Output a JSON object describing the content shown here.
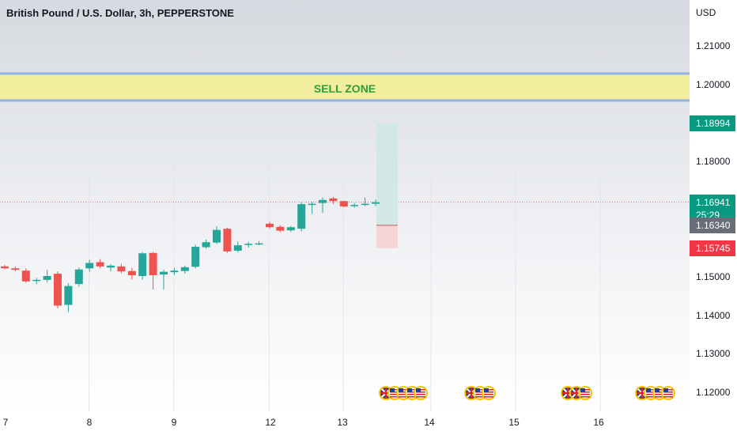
{
  "header": {
    "title": "British Pound / U.S. Dollar, 3h, PEPPERSTONE",
    "currency": "USD"
  },
  "zone": {
    "label": "SELL ZONE",
    "from": 1.1959,
    "to": 1.2029
  },
  "price_tags": [
    {
      "name": "target-price",
      "value": "1.18994",
      "color": "#089981",
      "y": 1.18994
    },
    {
      "name": "current-price",
      "value": "1.16941",
      "sub": "25:29",
      "color": "#089981",
      "y": 1.16941
    },
    {
      "name": "entry-price",
      "value": "1.16340",
      "color": "#6a6d78",
      "y": 1.1634
    },
    {
      "name": "stop-price",
      "value": "1.15745",
      "color": "#f23645",
      "y": 1.15745
    }
  ],
  "position": {
    "entry": 1.1634,
    "target": 1.18994,
    "stop": 1.15745
  },
  "chart_data": {
    "type": "candlestick",
    "title": "British Pound / U.S. Dollar, 3h, PEPPERSTONE",
    "ylim": [
      1.115,
      1.221
    ],
    "y_ticks": [
      "1.21000",
      "1.20000",
      "1.18000",
      "1.15000",
      "1.14000",
      "1.13000",
      "1.12000"
    ],
    "x_ticks": [
      "7",
      "8",
      "9",
      "12",
      "13",
      "14",
      "15",
      "16"
    ],
    "candles": [
      {
        "o": 1.1527,
        "h": 1.1531,
        "l": 1.1519,
        "c": 1.1522
      },
      {
        "o": 1.1522,
        "h": 1.1527,
        "l": 1.1514,
        "c": 1.1518
      },
      {
        "o": 1.1516,
        "h": 1.1522,
        "l": 1.1485,
        "c": 1.1488
      },
      {
        "o": 1.1489,
        "h": 1.1497,
        "l": 1.1481,
        "c": 1.1492
      },
      {
        "o": 1.1492,
        "h": 1.1518,
        "l": 1.1486,
        "c": 1.1502
      },
      {
        "o": 1.1508,
        "h": 1.1514,
        "l": 1.1418,
        "c": 1.1425
      },
      {
        "o": 1.1427,
        "h": 1.1483,
        "l": 1.1408,
        "c": 1.1476
      },
      {
        "o": 1.1481,
        "h": 1.1524,
        "l": 1.1474,
        "c": 1.1519
      },
      {
        "o": 1.1522,
        "h": 1.1544,
        "l": 1.1513,
        "c": 1.1536
      },
      {
        "o": 1.1538,
        "h": 1.1546,
        "l": 1.1522,
        "c": 1.1527
      },
      {
        "o": 1.1524,
        "h": 1.1533,
        "l": 1.1514,
        "c": 1.1529
      },
      {
        "o": 1.1527,
        "h": 1.1534,
        "l": 1.1509,
        "c": 1.1514
      },
      {
        "o": 1.1515,
        "h": 1.1523,
        "l": 1.1493,
        "c": 1.1504
      },
      {
        "o": 1.1502,
        "h": 1.1564,
        "l": 1.1492,
        "c": 1.1561
      },
      {
        "o": 1.1562,
        "h": 1.1565,
        "l": 1.1467,
        "c": 1.1504
      },
      {
        "o": 1.1506,
        "h": 1.1518,
        "l": 1.1467,
        "c": 1.1513
      },
      {
        "o": 1.1512,
        "h": 1.1523,
        "l": 1.1505,
        "c": 1.1516
      },
      {
        "o": 1.1515,
        "h": 1.1529,
        "l": 1.1508,
        "c": 1.1525
      },
      {
        "o": 1.1526,
        "h": 1.1583,
        "l": 1.1522,
        "c": 1.1578
      },
      {
        "o": 1.1577,
        "h": 1.1597,
        "l": 1.1573,
        "c": 1.159
      },
      {
        "o": 1.1589,
        "h": 1.1632,
        "l": 1.1585,
        "c": 1.1622
      },
      {
        "o": 1.1625,
        "h": 1.1628,
        "l": 1.1562,
        "c": 1.1566
      },
      {
        "o": 1.1568,
        "h": 1.1592,
        "l": 1.1563,
        "c": 1.1582
      },
      {
        "o": 1.1583,
        "h": 1.1591,
        "l": 1.1576,
        "c": 1.1586
      },
      {
        "o": 1.1586,
        "h": 1.1593,
        "l": 1.1582,
        "c": 1.1587
      },
      {
        "o": 1.1638,
        "h": 1.1643,
        "l": 1.1626,
        "c": 1.1629
      },
      {
        "o": 1.163,
        "h": 1.1634,
        "l": 1.1616,
        "c": 1.162
      },
      {
        "o": 1.1621,
        "h": 1.1632,
        "l": 1.1617,
        "c": 1.1629
      },
      {
        "o": 1.1625,
        "h": 1.1694,
        "l": 1.1618,
        "c": 1.1689
      },
      {
        "o": 1.1688,
        "h": 1.1695,
        "l": 1.1664,
        "c": 1.169
      },
      {
        "o": 1.1692,
        "h": 1.1706,
        "l": 1.1667,
        "c": 1.17
      },
      {
        "o": 1.1704,
        "h": 1.1708,
        "l": 1.1689,
        "c": 1.1697
      },
      {
        "o": 1.1697,
        "h": 1.1698,
        "l": 1.1681,
        "c": 1.1683
      },
      {
        "o": 1.1685,
        "h": 1.1692,
        "l": 1.168,
        "c": 1.1687
      },
      {
        "o": 1.1688,
        "h": 1.1706,
        "l": 1.1684,
        "c": 1.169
      },
      {
        "o": 1.169,
        "h": 1.1701,
        "l": 1.1684,
        "c": 1.1694
      }
    ]
  },
  "events": [
    {
      "name": "event-cluster-1",
      "flags": [
        "uk",
        "us",
        "us",
        "us",
        "us"
      ]
    },
    {
      "name": "event-cluster-2",
      "flags": [
        "uk",
        "us",
        "us"
      ]
    },
    {
      "name": "event-cluster-3",
      "flags": [
        "uk",
        "uk",
        "us"
      ]
    },
    {
      "name": "event-cluster-4",
      "flags": [
        "uk",
        "us",
        "us",
        "us"
      ]
    }
  ],
  "colors": {
    "up": "#26a69a",
    "down": "#ef5350",
    "zone_fill": "#f2ee9e",
    "zone_line": "#8fb4e8",
    "target_fill": "#cfe8e4",
    "stop_fill": "#f5d3d3",
    "bg_top": "#d6d9df",
    "bg_bottom": "#ffffff"
  }
}
